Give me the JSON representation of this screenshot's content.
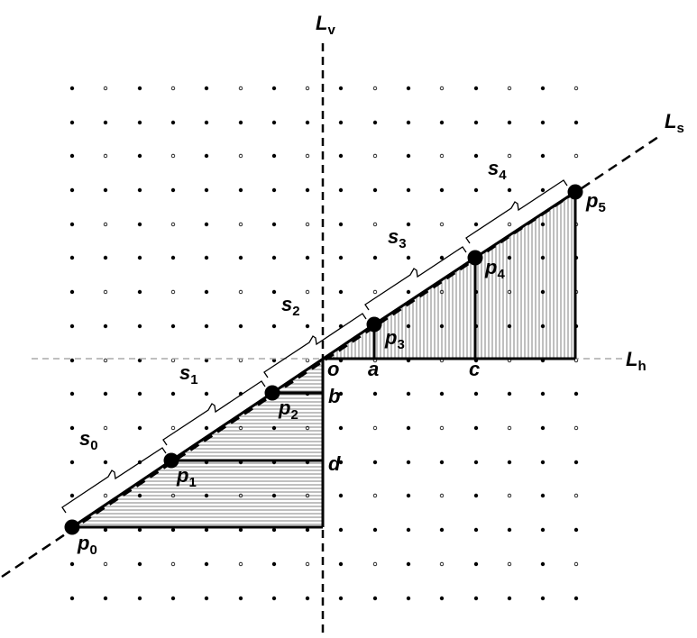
{
  "axes": {
    "vertical": {
      "letter": "L",
      "sub": "v"
    },
    "horizontal": {
      "letter": "L",
      "sub": "h"
    },
    "slanted": {
      "letter": "L",
      "sub": "s"
    }
  },
  "points": [
    {
      "letter": "p",
      "sub": "0"
    },
    {
      "letter": "p",
      "sub": "1"
    },
    {
      "letter": "p",
      "sub": "2"
    },
    {
      "letter": "p",
      "sub": "3"
    },
    {
      "letter": "p",
      "sub": "4"
    },
    {
      "letter": "p",
      "sub": "5"
    }
  ],
  "segments": [
    {
      "letter": "s",
      "sub": "0"
    },
    {
      "letter": "s",
      "sub": "1"
    },
    {
      "letter": "s",
      "sub": "2"
    },
    {
      "letter": "s",
      "sub": "3"
    },
    {
      "letter": "s",
      "sub": "4"
    }
  ],
  "markers": {
    "o": "o",
    "a": "a",
    "b": "b",
    "c": "c",
    "d": "d"
  },
  "colors": {
    "ink": "#000000",
    "dashed_axis": "#aaaaaa",
    "background": "#ffffff"
  }
}
